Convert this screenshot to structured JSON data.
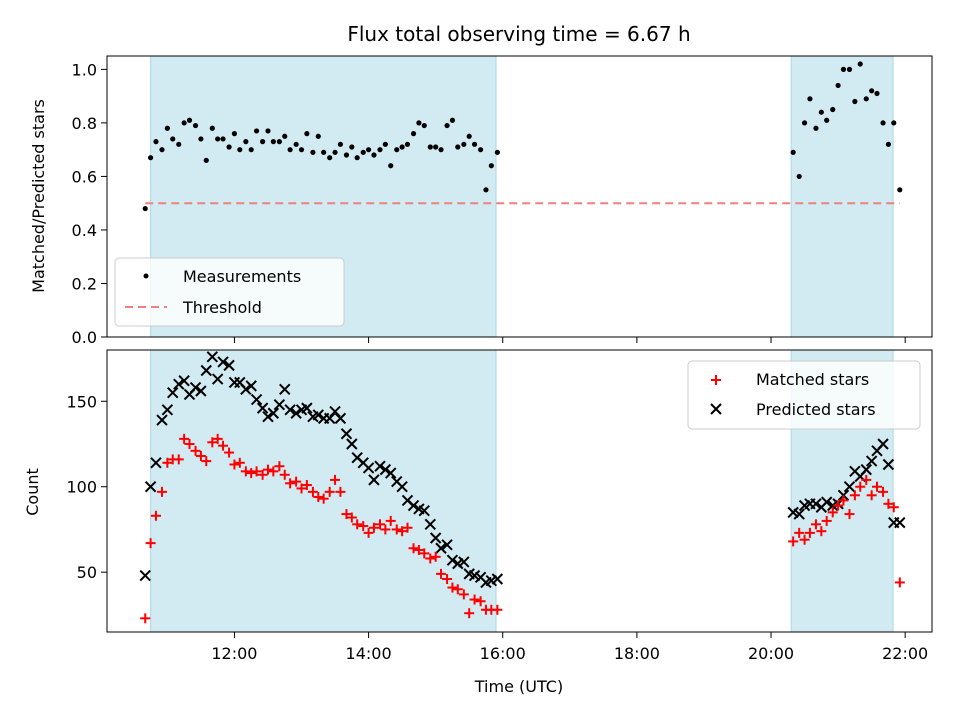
{
  "chart_data": [
    {
      "type": "scatter",
      "title": "Flux total observing time = 6.67 h",
      "ylabel": "Matched/Predicted stars",
      "xlabel": "",
      "xlim_hours": [
        10.1,
        22.4
      ],
      "ylim": [
        0.0,
        1.05
      ],
      "yticks": [
        "0.0",
        "0.2",
        "0.4",
        "0.6",
        "0.8",
        "1.0"
      ],
      "grid": false,
      "legend_placement": "lower-left",
      "shaded_hours": [
        [
          10.75,
          15.9
        ],
        [
          20.3,
          21.82
        ]
      ],
      "shade_color": "#add8e6",
      "series": [
        {
          "name": "Measurements",
          "marker": "dot",
          "color": "#000000",
          "x": [
            10.67,
            10.75,
            10.83,
            10.92,
            11.0,
            11.08,
            11.17,
            11.25,
            11.33,
            11.42,
            11.5,
            11.58,
            11.67,
            11.75,
            11.83,
            11.92,
            12.0,
            12.08,
            12.17,
            12.25,
            12.33,
            12.42,
            12.5,
            12.58,
            12.67,
            12.75,
            12.83,
            12.92,
            13.0,
            13.08,
            13.17,
            13.25,
            13.33,
            13.42,
            13.5,
            13.58,
            13.67,
            13.75,
            13.83,
            13.92,
            14.0,
            14.08,
            14.17,
            14.25,
            14.33,
            14.42,
            14.5,
            14.58,
            14.67,
            14.75,
            14.83,
            14.92,
            15.0,
            15.08,
            15.17,
            15.25,
            15.33,
            15.42,
            15.5,
            15.58,
            15.67,
            15.75,
            15.83,
            15.92,
            20.33,
            20.42,
            20.5,
            20.58,
            20.67,
            20.75,
            20.83,
            20.92,
            21.0,
            21.08,
            21.17,
            21.25,
            21.33,
            21.42,
            21.5,
            21.58,
            21.67,
            21.75,
            21.83,
            21.92
          ],
          "values": [
            0.48,
            0.67,
            0.73,
            0.7,
            0.78,
            0.74,
            0.72,
            0.8,
            0.81,
            0.79,
            0.74,
            0.66,
            0.78,
            0.74,
            0.74,
            0.71,
            0.76,
            0.7,
            0.73,
            0.7,
            0.77,
            0.73,
            0.77,
            0.73,
            0.73,
            0.75,
            0.7,
            0.72,
            0.7,
            0.76,
            0.69,
            0.75,
            0.69,
            0.67,
            0.69,
            0.72,
            0.68,
            0.71,
            0.67,
            0.69,
            0.7,
            0.68,
            0.7,
            0.72,
            0.64,
            0.7,
            0.71,
            0.72,
            0.76,
            0.8,
            0.79,
            0.71,
            0.71,
            0.7,
            0.79,
            0.81,
            0.71,
            0.72,
            0.75,
            0.72,
            0.7,
            0.55,
            0.64,
            0.69,
            0.69,
            0.6,
            0.8,
            0.89,
            0.78,
            0.84,
            0.81,
            0.85,
            0.94,
            1.0,
            1.0,
            0.88,
            1.02,
            0.89,
            0.92,
            0.91,
            0.8,
            0.72,
            0.8,
            0.55
          ],
          "x_note_removed": true
        },
        {
          "name": "Threshold",
          "marker": "dashed-line",
          "color": "#f08080",
          "x": [
            10.67,
            21.92
          ],
          "values": [
            0.5,
            0.5
          ]
        }
      ]
    },
    {
      "type": "scatter",
      "title": "",
      "ylabel": "Count",
      "xlabel": "Time (UTC)",
      "xlim_hours": [
        10.1,
        22.4
      ],
      "ylim": [
        15,
        180
      ],
      "yticks": [
        "50",
        "100",
        "150"
      ],
      "xticks": [
        "12:00",
        "14:00",
        "16:00",
        "18:00",
        "20:00",
        "22:00"
      ],
      "grid": false,
      "legend_placement": "upper-right",
      "shaded_hours": [
        [
          10.75,
          15.9
        ],
        [
          20.3,
          21.82
        ]
      ],
      "shade_color": "#add8e6",
      "series": [
        {
          "name": "Matched stars",
          "marker": "plus",
          "color": "#ff0000",
          "x": [
            10.67,
            10.75,
            10.83,
            10.92,
            11.0,
            11.08,
            11.17,
            11.25,
            11.33,
            11.42,
            11.5,
            11.58,
            11.67,
            11.75,
            11.83,
            11.92,
            12.0,
            12.08,
            12.17,
            12.25,
            12.33,
            12.42,
            12.5,
            12.58,
            12.67,
            12.75,
            12.83,
            12.92,
            13.0,
            13.08,
            13.17,
            13.25,
            13.33,
            13.42,
            13.5,
            13.58,
            13.67,
            13.75,
            13.83,
            13.92,
            14.0,
            14.08,
            14.17,
            14.25,
            14.33,
            14.42,
            14.5,
            14.58,
            14.67,
            14.75,
            14.83,
            14.92,
            15.0,
            15.08,
            15.17,
            15.25,
            15.33,
            15.42,
            15.5,
            15.58,
            15.67,
            15.75,
            15.83,
            15.92,
            20.33,
            20.42,
            20.5,
            20.58,
            20.67,
            20.75,
            20.83,
            20.92,
            21.0,
            21.08,
            21.17,
            21.25,
            21.33,
            21.42,
            21.5,
            21.58,
            21.67,
            21.75,
            21.83,
            21.92
          ],
          "values": [
            23,
            67,
            83,
            97,
            114,
            116,
            116,
            128,
            125,
            121,
            118,
            115,
            126,
            128,
            124,
            120,
            113,
            114,
            109,
            108,
            109,
            107,
            110,
            109,
            112,
            107,
            102,
            103,
            99,
            101,
            97,
            94,
            93,
            97,
            104,
            97,
            84,
            82,
            78,
            77,
            73,
            76,
            78,
            75,
            80,
            75,
            74,
            76,
            64,
            63,
            61,
            58,
            59,
            49,
            46,
            41,
            40,
            37,
            26,
            34,
            33,
            28,
            28,
            28,
            68,
            73,
            69,
            73,
            78,
            74,
            80,
            85,
            89,
            92,
            84,
            95,
            100,
            104,
            95,
            100,
            97,
            90,
            88,
            44
          ]
        },
        {
          "name": "Predicted stars",
          "marker": "cross",
          "color": "#000000",
          "x": [
            10.67,
            10.75,
            10.83,
            10.92,
            11.0,
            11.08,
            11.17,
            11.25,
            11.33,
            11.42,
            11.5,
            11.58,
            11.67,
            11.75,
            11.83,
            11.92,
            12.0,
            12.08,
            12.17,
            12.25,
            12.33,
            12.42,
            12.5,
            12.58,
            12.67,
            12.75,
            12.83,
            12.92,
            13.0,
            13.08,
            13.17,
            13.25,
            13.33,
            13.42,
            13.5,
            13.58,
            13.67,
            13.75,
            13.83,
            13.92,
            14.0,
            14.08,
            14.17,
            14.25,
            14.33,
            14.42,
            14.5,
            14.58,
            14.67,
            14.75,
            14.83,
            14.92,
            15.0,
            15.08,
            15.17,
            15.25,
            15.33,
            15.42,
            15.5,
            15.58,
            15.67,
            15.75,
            15.83,
            15.92,
            20.33,
            20.42,
            20.5,
            20.58,
            20.67,
            20.75,
            20.83,
            20.92,
            21.0,
            21.08,
            21.17,
            21.25,
            21.33,
            21.42,
            21.5,
            21.58,
            21.67,
            21.75,
            21.83,
            21.92
          ],
          "values": [
            48,
            100,
            114,
            139,
            145,
            155,
            160,
            162,
            154,
            158,
            156,
            168,
            176,
            163,
            173,
            171,
            161,
            161,
            157,
            159,
            151,
            146,
            141,
            143,
            148,
            157,
            145,
            143,
            145,
            146,
            141,
            142,
            140,
            140,
            144,
            140,
            131,
            125,
            117,
            114,
            111,
            104,
            112,
            110,
            108,
            103,
            100,
            92,
            89,
            87,
            86,
            78,
            70,
            64,
            66,
            57,
            55,
            56,
            49,
            48,
            47,
            44,
            45,
            46,
            85,
            84,
            89,
            90,
            90,
            88,
            91,
            89,
            90,
            95,
            100,
            109,
            106,
            110,
            115,
            121,
            125,
            113,
            79,
            79
          ]
        }
      ]
    }
  ]
}
